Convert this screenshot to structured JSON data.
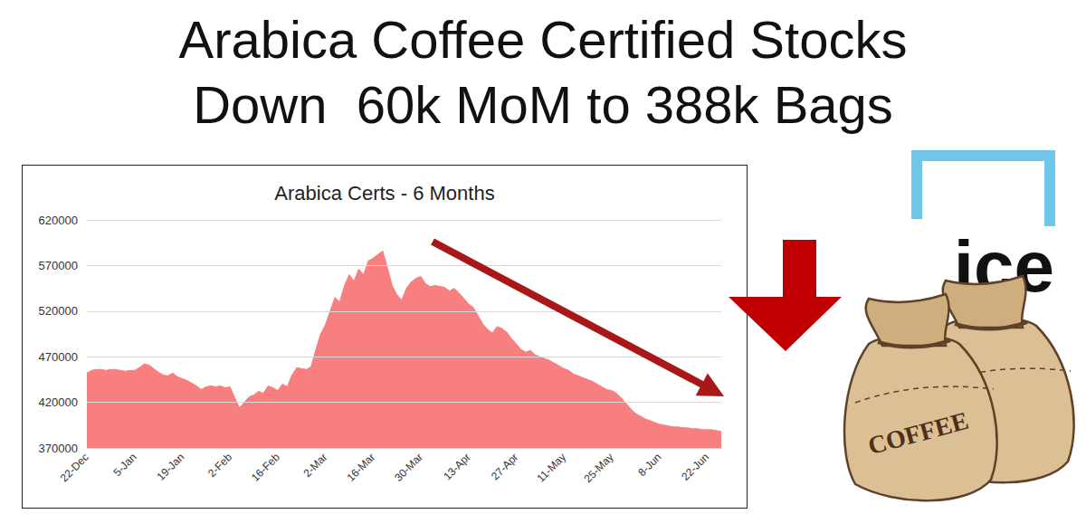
{
  "header": {
    "title_lines": [
      "Arabica Coffee Certified Stocks",
      "Down  60k MoM to 388k Bags"
    ]
  },
  "logo": {
    "text": "ice"
  },
  "bag": {
    "label": "COFFEE"
  },
  "chart_data": {
    "type": "area",
    "title": "Arabica Certs - 6 Months",
    "categories": [
      "22-Dec",
      null,
      null,
      null,
      null,
      null,
      null,
      null,
      null,
      null,
      "5-Jan",
      null,
      null,
      null,
      null,
      null,
      null,
      null,
      null,
      null,
      "19-Jan",
      null,
      null,
      null,
      null,
      null,
      null,
      null,
      null,
      null,
      "2-Feb",
      null,
      null,
      null,
      null,
      null,
      null,
      null,
      null,
      null,
      "16-Feb",
      null,
      null,
      null,
      null,
      null,
      null,
      null,
      null,
      null,
      "2-Mar",
      null,
      null,
      null,
      null,
      null,
      null,
      null,
      null,
      null,
      "16-Mar",
      null,
      null,
      null,
      null,
      null,
      null,
      null,
      null,
      null,
      "30-Mar",
      null,
      null,
      null,
      null,
      null,
      null,
      null,
      null,
      null,
      "13-Apr",
      null,
      null,
      null,
      null,
      null,
      null,
      null,
      null,
      null,
      "27-Apr",
      null,
      null,
      null,
      null,
      null,
      null,
      null,
      null,
      null,
      "11-May",
      null,
      null,
      null,
      null,
      null,
      null,
      null,
      null,
      null,
      "25-May",
      null,
      null,
      null,
      null,
      null,
      null,
      null,
      null,
      null,
      "8-Jun",
      null,
      null,
      null,
      null,
      null,
      null,
      null,
      null,
      null,
      "22-Jun",
      null,
      null,
      null
    ],
    "values": [
      452000,
      455000,
      456000,
      456000,
      455000,
      456000,
      456000,
      455000,
      454000,
      455000,
      455000,
      458000,
      462000,
      461000,
      457000,
      453000,
      450000,
      449000,
      452000,
      448000,
      446000,
      444000,
      441000,
      438000,
      434000,
      437000,
      438000,
      437000,
      438000,
      436000,
      437000,
      425000,
      414000,
      420000,
      426000,
      428000,
      432000,
      430000,
      438000,
      436000,
      433000,
      440000,
      437000,
      450000,
      458000,
      457000,
      456000,
      459000,
      478000,
      495000,
      505000,
      520000,
      535000,
      530000,
      548000,
      560000,
      553000,
      566000,
      560000,
      575000,
      578000,
      582000,
      586000,
      568000,
      548000,
      538000,
      532000,
      545000,
      552000,
      556000,
      558000,
      550000,
      547000,
      548000,
      547000,
      546000,
      542000,
      545000,
      540000,
      534000,
      528000,
      524000,
      515000,
      506000,
      500000,
      496000,
      503000,
      501000,
      497000,
      490000,
      484000,
      478000,
      475000,
      477000,
      472000,
      470000,
      468000,
      466000,
      463000,
      460000,
      457000,
      455000,
      451000,
      449000,
      447000,
      445000,
      443000,
      440000,
      437000,
      434000,
      433000,
      430000,
      425000,
      419000,
      413000,
      408000,
      405000,
      402000,
      400000,
      398000,
      396000,
      395000,
      394000,
      393000,
      393000,
      392000,
      392000,
      391000,
      391000,
      390000,
      390000,
      390000,
      389000,
      388000
    ],
    "color": "#f87f7f",
    "ylim": [
      370000,
      620000
    ],
    "yticks": [
      370000,
      420000,
      470000,
      520000,
      570000,
      620000
    ],
    "grid": true
  }
}
